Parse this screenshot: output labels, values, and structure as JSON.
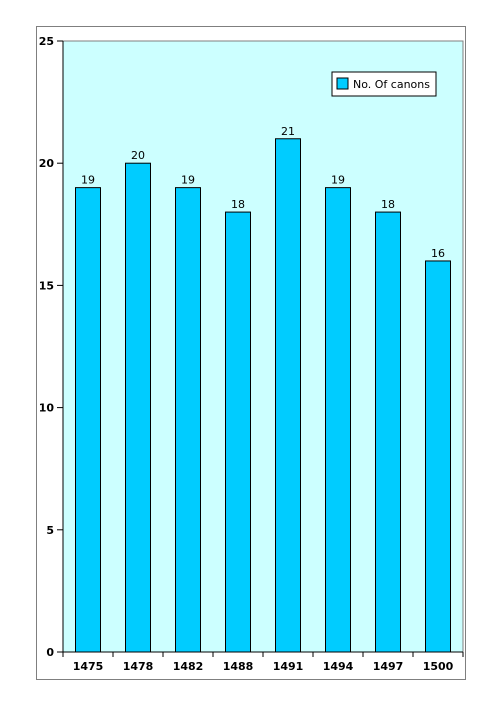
{
  "chart_data": {
    "type": "bar",
    "title": "",
    "xlabel": "",
    "ylabel": "",
    "categories": [
      "1475",
      "1478",
      "1482",
      "1488",
      "1491",
      "1494",
      "1497",
      "1500"
    ],
    "series": [
      {
        "name": "No. Of canons",
        "values": [
          19,
          20,
          19,
          18,
          21,
          19,
          18,
          16
        ]
      }
    ],
    "ylim": [
      0,
      25
    ],
    "yticks": [
      "0",
      "5",
      "10",
      "15",
      "20",
      "25"
    ],
    "data_labels": true,
    "grid": false,
    "legend_position": "top-right",
    "colors": {
      "bar_fill": "#00ccff",
      "bar_stroke": "#000000",
      "plot_background": "#ccffff",
      "axis": "#000000"
    }
  }
}
